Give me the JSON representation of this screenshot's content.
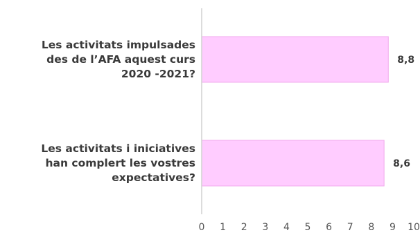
{
  "chart_data": {
    "type": "bar",
    "orientation": "horizontal",
    "title": "",
    "xlabel": "",
    "ylabel": "",
    "categories": [
      [
        "Les activitats impulsades",
        "des de l’AFA aquest curs",
        "2020 -2021?"
      ],
      [
        "Les activitats i iniciatives",
        "han complert les vostres",
        "expectatives?"
      ]
    ],
    "values": [
      8.8,
      8.6
    ],
    "value_labels": [
      "8,8",
      "8,6"
    ],
    "xlim": [
      0,
      10
    ],
    "xticks": [
      "0",
      "1",
      "2",
      "3",
      "4",
      "5",
      "6",
      "7",
      "8",
      "9",
      "10"
    ],
    "grid": false,
    "legend": "none",
    "colors": {
      "bar_fill": "#ffccff",
      "bar_stroke": "#f0a8ec",
      "axis": "#d0d0d0",
      "text": "#3a3a3a",
      "tick_text": "#555555"
    }
  }
}
